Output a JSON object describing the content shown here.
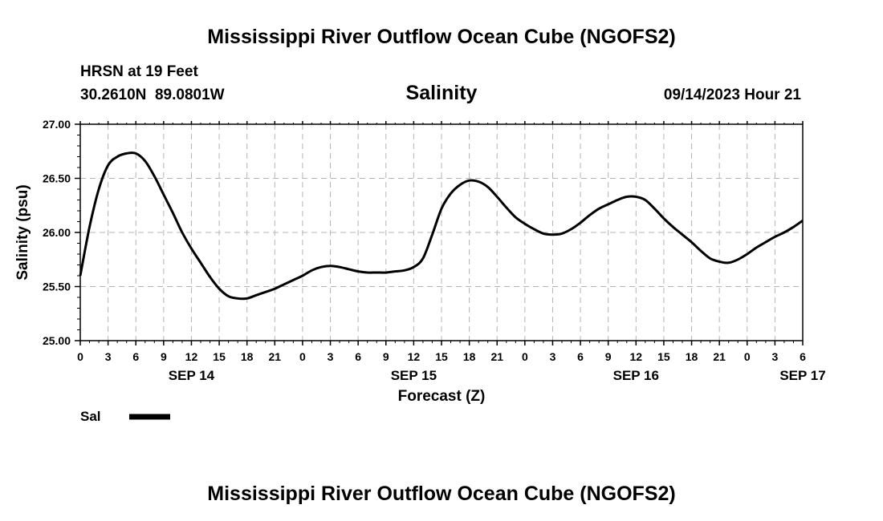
{
  "page": {
    "title": "Mississippi River Outflow Ocean Cube (NGOFS2)",
    "bottom_title": "Mississippi River Outflow Ocean Cube (NGOFS2)",
    "station": "HRSN at 19 Feet",
    "coords": "30.2610N  89.0801W",
    "datetime": "09/14/2023 Hour 21"
  },
  "chart_data": {
    "type": "line",
    "title": "Salinity",
    "xlabel": "Forecast (Z)",
    "ylabel": "Salinity (psu)",
    "x_unit": "hours since SEP 14 00Z",
    "xlim": [
      0,
      78
    ],
    "ylim": [
      25.0,
      27.0
    ],
    "y_ticks": [
      "25.00",
      "25.50",
      "26.00",
      "26.50",
      "27.00"
    ],
    "x_tick_labels": [
      "0",
      "3",
      "6",
      "9",
      "12",
      "15",
      "18",
      "21",
      "0",
      "3",
      "6",
      "9",
      "12",
      "15",
      "18",
      "21",
      "0",
      "3",
      "6",
      "9",
      "12",
      "15",
      "18",
      "21",
      "0",
      "3",
      "6"
    ],
    "date_labels": [
      {
        "label": "SEP 14",
        "hour": 12
      },
      {
        "label": "SEP 15",
        "hour": 36
      },
      {
        "label": "SEP 16",
        "hour": 60
      },
      {
        "label": "SEP 17",
        "hour": 78
      }
    ],
    "grid": true,
    "legend_position": "bottom-left",
    "series": [
      {
        "name": "Sal",
        "color": "#000000",
        "x": [
          0,
          1,
          2,
          3,
          4,
          5,
          6,
          7,
          8,
          9,
          10,
          11,
          12,
          13,
          14,
          15,
          16,
          17,
          18,
          19,
          20,
          21,
          22,
          23,
          24,
          25,
          26,
          27,
          28,
          29,
          30,
          31,
          32,
          33,
          34,
          35,
          36,
          37,
          38,
          39,
          40,
          41,
          42,
          43,
          44,
          45,
          46,
          47,
          48,
          49,
          50,
          51,
          52,
          53,
          54,
          55,
          56,
          57,
          58,
          59,
          60,
          61,
          62,
          63,
          64,
          65,
          66,
          67,
          68,
          69,
          70,
          71,
          72,
          73,
          74,
          75,
          76,
          77,
          78
        ],
        "values": [
          25.6,
          26.05,
          26.4,
          26.62,
          26.7,
          26.73,
          26.73,
          26.66,
          26.52,
          26.35,
          26.18,
          26.0,
          25.85,
          25.72,
          25.59,
          25.48,
          25.41,
          25.39,
          25.39,
          25.42,
          25.45,
          25.48,
          25.52,
          25.56,
          25.6,
          25.65,
          25.68,
          25.69,
          25.68,
          25.66,
          25.64,
          25.63,
          25.63,
          25.63,
          25.64,
          25.65,
          25.68,
          25.76,
          25.98,
          26.22,
          26.36,
          26.44,
          26.48,
          26.47,
          26.42,
          26.33,
          26.23,
          26.14,
          26.08,
          26.03,
          25.99,
          25.98,
          25.99,
          26.03,
          26.09,
          26.16,
          26.22,
          26.26,
          26.3,
          26.33,
          26.33,
          26.3,
          26.22,
          26.13,
          26.05,
          25.98,
          25.91,
          25.83,
          25.76,
          25.73,
          25.72,
          25.75,
          25.8,
          25.86,
          25.91,
          25.96,
          26.0,
          26.05,
          26.11
        ]
      }
    ]
  }
}
